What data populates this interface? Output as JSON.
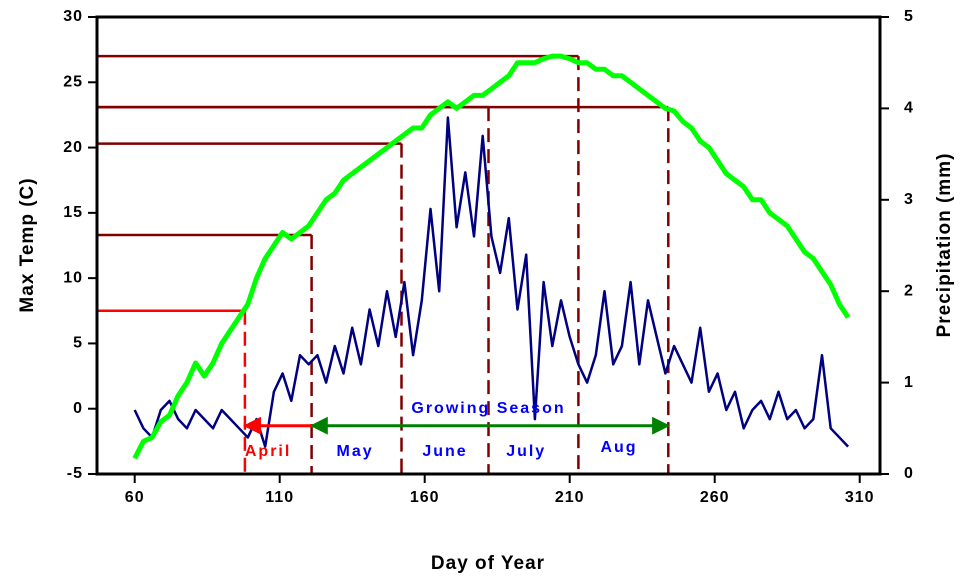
{
  "chart_data": {
    "type": "line",
    "xlabel": "Day of Year",
    "ylabel": "Max Temp (C)",
    "y2label": "Precipitation (mm)",
    "x": [
      60,
      63,
      66,
      69,
      72,
      75,
      78,
      81,
      84,
      87,
      90,
      93,
      96,
      99,
      102,
      105,
      108,
      111,
      114,
      117,
      120,
      123,
      126,
      129,
      132,
      135,
      138,
      141,
      144,
      147,
      150,
      153,
      156,
      159,
      162,
      165,
      168,
      171,
      174,
      177,
      180,
      183,
      186,
      189,
      192,
      195,
      198,
      201,
      204,
      207,
      210,
      213,
      216,
      219,
      222,
      225,
      228,
      231,
      234,
      237,
      240,
      243,
      246,
      249,
      252,
      255,
      258,
      261,
      264,
      267,
      270,
      273,
      276,
      279,
      282,
      285,
      288,
      291,
      294,
      297,
      300,
      303,
      306
    ],
    "series": [
      {
        "name": "Max Temp",
        "color": "#00ff00",
        "axis": "y",
        "values": [
          -3.8,
          -2.5,
          -2.2,
          -1,
          -0.5,
          1,
          2,
          3.5,
          2.5,
          3.5,
          5,
          6,
          7,
          8,
          10,
          11.5,
          12.5,
          13.5,
          13,
          13.5,
          14,
          15,
          16,
          16.5,
          17.5,
          18,
          18.5,
          19,
          19.5,
          20,
          20.5,
          21,
          21.5,
          21.5,
          22.5,
          23,
          23.5,
          23,
          23.5,
          24,
          24,
          24.5,
          25,
          25.5,
          26.5,
          26.5,
          26.5,
          26.8,
          27,
          27,
          26.8,
          26.5,
          26.5,
          26,
          26,
          25.5,
          25.5,
          25,
          24.5,
          24,
          23.5,
          23,
          22.8,
          22,
          21.5,
          20.5,
          20,
          19,
          18,
          17.5,
          17,
          16,
          16,
          15,
          14.5,
          14,
          13,
          12,
          11.5,
          10.5,
          9.5,
          8,
          7
        ]
      },
      {
        "name": "Precipitation",
        "color": "#000080",
        "axis": "y2",
        "values": [
          0.7,
          0.5,
          0.4,
          0.7,
          0.8,
          0.6,
          0.5,
          0.7,
          0.6,
          0.5,
          0.7,
          0.6,
          0.5,
          0.4,
          0.6,
          0.3,
          0.9,
          1.1,
          0.8,
          1.3,
          1.2,
          1.3,
          1.0,
          1.4,
          1.1,
          1.6,
          1.2,
          1.8,
          1.4,
          2.0,
          1.5,
          2.1,
          1.3,
          1.9,
          2.9,
          2.0,
          3.9,
          2.7,
          3.3,
          2.6,
          3.7,
          2.6,
          2.2,
          2.8,
          1.8,
          2.4,
          0.6,
          2.1,
          1.4,
          1.9,
          1.5,
          1.2,
          1.0,
          1.3,
          2.0,
          1.2,
          1.4,
          2.1,
          1.2,
          1.9,
          1.5,
          1.1,
          1.4,
          1.2,
          1.0,
          1.6,
          0.9,
          1.1,
          0.7,
          0.9,
          0.5,
          0.7,
          0.8,
          0.6,
          0.9,
          0.6,
          0.7,
          0.5,
          0.6,
          1.3,
          0.5,
          0.4,
          0.3
        ]
      }
    ],
    "xlim": [
      47,
      317
    ],
    "xticks": [
      60,
      110,
      160,
      210,
      260,
      310
    ],
    "ylim": [
      -5,
      30
    ],
    "yticks": [
      -5,
      0,
      5,
      10,
      15,
      20,
      25,
      30
    ],
    "y2lim": [
      0,
      5
    ],
    "y2ticks": [
      0,
      1,
      2,
      3,
      4,
      5
    ],
    "guides": [
      {
        "day": 98,
        "temp": 7.5,
        "color": "#ff0000"
      },
      {
        "day": 121,
        "temp": 13.3,
        "color": "#800000"
      },
      {
        "day": 152,
        "temp": 20.3,
        "color": "#800000"
      },
      {
        "day": 182,
        "temp": 23.1,
        "color": "#800000"
      },
      {
        "day": 213,
        "temp": 27,
        "color": "#800000"
      },
      {
        "day": 244,
        "temp": 23.1,
        "color": "#800000"
      }
    ],
    "arrows": [
      {
        "from": 121,
        "to": 244,
        "y": -1.3,
        "color": "#008000",
        "text": "Growing Season",
        "text_x": 182,
        "text_y": 0
      },
      {
        "from": 121,
        "to": 98,
        "y": -1.3,
        "color": "#ff0000"
      }
    ],
    "annotations": [
      {
        "text": "April",
        "x": 106,
        "y": -3.3,
        "color": "#ff0000"
      },
      {
        "text": "May",
        "x": 136,
        "y": -3.3,
        "color": "#0000ff"
      },
      {
        "text": "June",
        "x": 167,
        "y": -3.3,
        "color": "#0000ff"
      },
      {
        "text": "July",
        "x": 195,
        "y": -3.3,
        "color": "#0000ff"
      },
      {
        "text": "Aug",
        "x": 227,
        "y": -3.0,
        "color": "#0000ff"
      }
    ]
  }
}
